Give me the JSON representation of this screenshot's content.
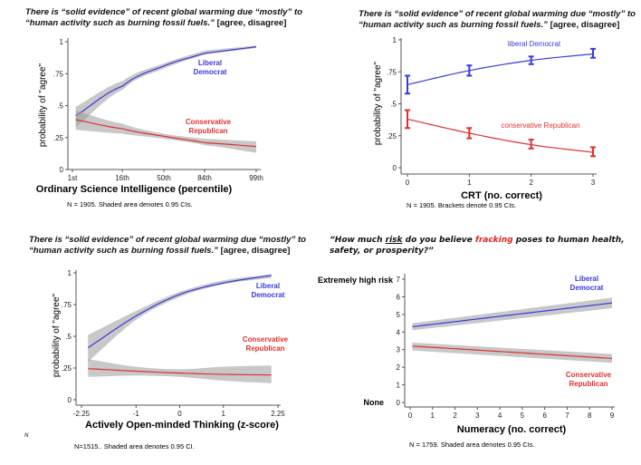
{
  "chart_data": [
    {
      "type": "line",
      "title_main": "There is “solid evidence” of recent global warming due “mostly” to “human activity such as burning fossil fuels.”",
      "title_suffix": "[agree, disagree]",
      "xlabel": "Ordinary Science Intelligence (percentile)",
      "ylabel": "probability of \"agree\"",
      "note": "N = 1905. Shaded area denotes 0.95 CIs.",
      "x_ticks": [
        "1st",
        "16th",
        "50th",
        "84th",
        "99th"
      ],
      "y_ticks": [
        "0",
        ".25",
        ".5",
        ".75",
        "1"
      ],
      "ylim": [
        0,
        1
      ],
      "grid": false,
      "series": [
        {
          "name": "Liberal Democrat",
          "color": "#3a3adc",
          "x": [
            2,
            16,
            50,
            84,
            99
          ],
          "y": [
            0.42,
            0.65,
            0.81,
            0.91,
            0.96
          ],
          "ci_low": [
            0.33,
            0.62,
            0.79,
            0.9,
            0.95
          ],
          "ci_high": [
            0.49,
            0.69,
            0.83,
            0.93,
            0.97
          ]
        },
        {
          "name": "Conservative Republican",
          "color": "#e03030",
          "x": [
            2,
            16,
            50,
            84,
            99
          ],
          "y": [
            0.39,
            0.32,
            0.26,
            0.21,
            0.18
          ],
          "ci_low": [
            0.31,
            0.28,
            0.24,
            0.19,
            0.13
          ],
          "ci_high": [
            0.46,
            0.36,
            0.28,
            0.24,
            0.22
          ]
        }
      ]
    },
    {
      "type": "line",
      "title_main": "There is “solid evidence” of recent global warming due “mostly” to “human activity such as burning fossil fuels.”",
      "title_suffix": "[agree, disagree]",
      "xlabel": "CRT (no. correct)",
      "ylabel": "probability of \"agree\"",
      "note": "N = 1905. Brackets denote 0.95 CIs.",
      "x_ticks": [
        "0",
        "1",
        "2",
        "3"
      ],
      "y_ticks": [
        "0",
        ".25",
        ".5",
        ".75",
        "1"
      ],
      "ylim": [
        0,
        1
      ],
      "grid": false,
      "series": [
        {
          "name": "liberal Democrat",
          "color": "#3a3adc",
          "x": [
            0,
            1,
            2,
            3
          ],
          "y": [
            0.65,
            0.76,
            0.84,
            0.89
          ],
          "ci_low": [
            0.58,
            0.72,
            0.81,
            0.86
          ],
          "ci_high": [
            0.72,
            0.8,
            0.87,
            0.93
          ]
        },
        {
          "name": "conservative Republican",
          "color": "#e03030",
          "x": [
            0,
            1,
            2,
            3
          ],
          "y": [
            0.38,
            0.27,
            0.18,
            0.12
          ],
          "ci_low": [
            0.31,
            0.23,
            0.15,
            0.09
          ],
          "ci_high": [
            0.45,
            0.31,
            0.22,
            0.16
          ]
        }
      ]
    },
    {
      "type": "line",
      "title_main": "There is “solid evidence” of recent global warming due “mostly” to “human activity such as burning fossil fuels.”",
      "title_suffix": "[agree, disagree]",
      "xlabel": "Actively Open-minded Thinking (z-score)",
      "ylabel": "probability of \"agree\"",
      "note": "N=1515.. Shaded area denotes 0.95 CI.",
      "x_ticks": [
        "-2.25",
        "-1",
        "0",
        "1",
        "2.25"
      ],
      "y_ticks": [
        "0",
        ".25",
        ".5",
        ".75",
        "1"
      ],
      "xlim": [
        -2.25,
        2.25
      ],
      "ylim": [
        0,
        1
      ],
      "grid": false,
      "series": [
        {
          "name": "Liberal Democrat",
          "color": "#3a3adc",
          "x": [
            -2.1,
            -1,
            0,
            1,
            2.1
          ],
          "y": [
            0.41,
            0.66,
            0.83,
            0.92,
            0.98
          ],
          "ci_low": [
            0.3,
            0.63,
            0.81,
            0.91,
            0.96
          ],
          "ci_high": [
            0.51,
            0.7,
            0.85,
            0.94,
            0.99
          ]
        },
        {
          "name": "Conservative Republican",
          "color": "#e03030",
          "x": [
            -2.1,
            -1,
            0,
            1,
            2.1
          ],
          "y": [
            0.245,
            0.225,
            0.21,
            0.2,
            0.195
          ],
          "ci_low": [
            0.18,
            0.19,
            0.18,
            0.15,
            0.13
          ],
          "ci_high": [
            0.32,
            0.26,
            0.24,
            0.26,
            0.27
          ]
        }
      ]
    },
    {
      "type": "line",
      "title_pre": "“How much ",
      "title_risk": "risk",
      "title_mid": " do you believe ",
      "title_fracking": "fracking",
      "title_post": " poses to human health, safety, or prosperity?”",
      "xlabel": "Numeracy (no. correct)",
      "ylabel_top": "Extremely high risk",
      "ylabel_bottom": "None",
      "note": "N = 1759.  Shaded area denotes 0.95 CIs.",
      "x_ticks": [
        "0",
        "1",
        "2",
        "3",
        "4",
        "5",
        "6",
        "7",
        "8",
        "9"
      ],
      "y_ticks": [
        "0",
        "1",
        "2",
        "3",
        "4",
        "5",
        "6",
        "7"
      ],
      "xlim": [
        0,
        9
      ],
      "ylim": [
        0,
        7
      ],
      "grid": false,
      "series": [
        {
          "name": "Liberal Democrat",
          "color": "#3a3adc",
          "x": [
            0.1,
            9
          ],
          "y": [
            4.3,
            5.65
          ],
          "ci_low": [
            4.1,
            5.35
          ],
          "ci_high": [
            4.5,
            5.95
          ]
        },
        {
          "name": "Conservative Republican",
          "color": "#e03030",
          "x": [
            0.1,
            9
          ],
          "y": [
            3.2,
            2.5
          ],
          "ci_low": [
            2.95,
            2.25
          ],
          "ci_high": [
            3.4,
            2.75
          ]
        }
      ]
    }
  ],
  "stray_mark": "N"
}
